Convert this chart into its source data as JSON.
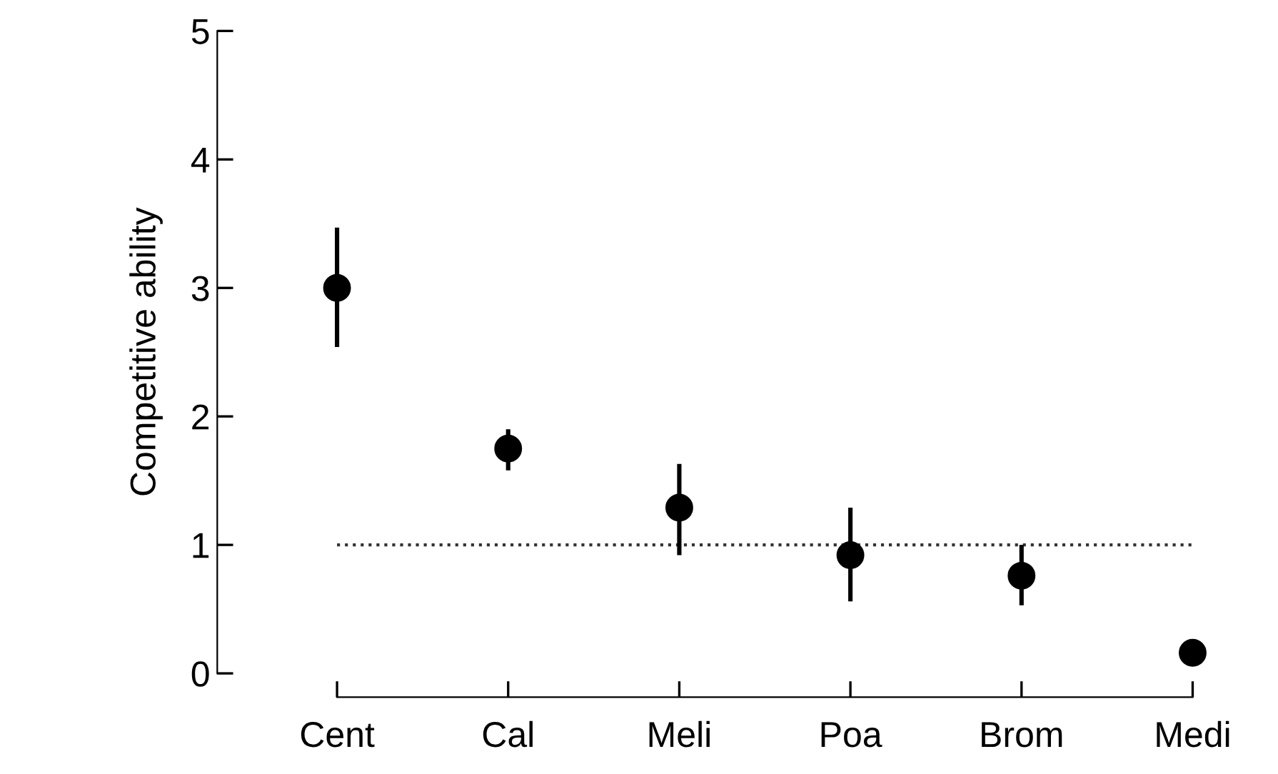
{
  "chart_data": {
    "type": "scatter",
    "ylabel": "Competitive ability",
    "categories": [
      "Cent",
      "Cal",
      "Meli",
      "Poa",
      "Brom",
      "Medi"
    ],
    "series": [
      {
        "color": "#000000",
        "values": [
          3.0,
          1.75,
          1.29,
          0.92,
          0.76,
          0.16
        ],
        "errors": [
          [
            2.54,
            3.47
          ],
          [
            1.58,
            1.9
          ],
          [
            0.92,
            1.63
          ],
          [
            0.56,
            1.29
          ],
          [
            0.53,
            1.0
          ],
          null
        ]
      }
    ],
    "ylim": [
      0,
      5
    ],
    "yticks": [
      0,
      1,
      2,
      3,
      4,
      5
    ],
    "marker": "circle",
    "grid": false,
    "legend": false,
    "ref_lines": [
      {
        "axis": "y",
        "value": 1,
        "color": "#333333",
        "line_style": "dotted"
      }
    ]
  }
}
